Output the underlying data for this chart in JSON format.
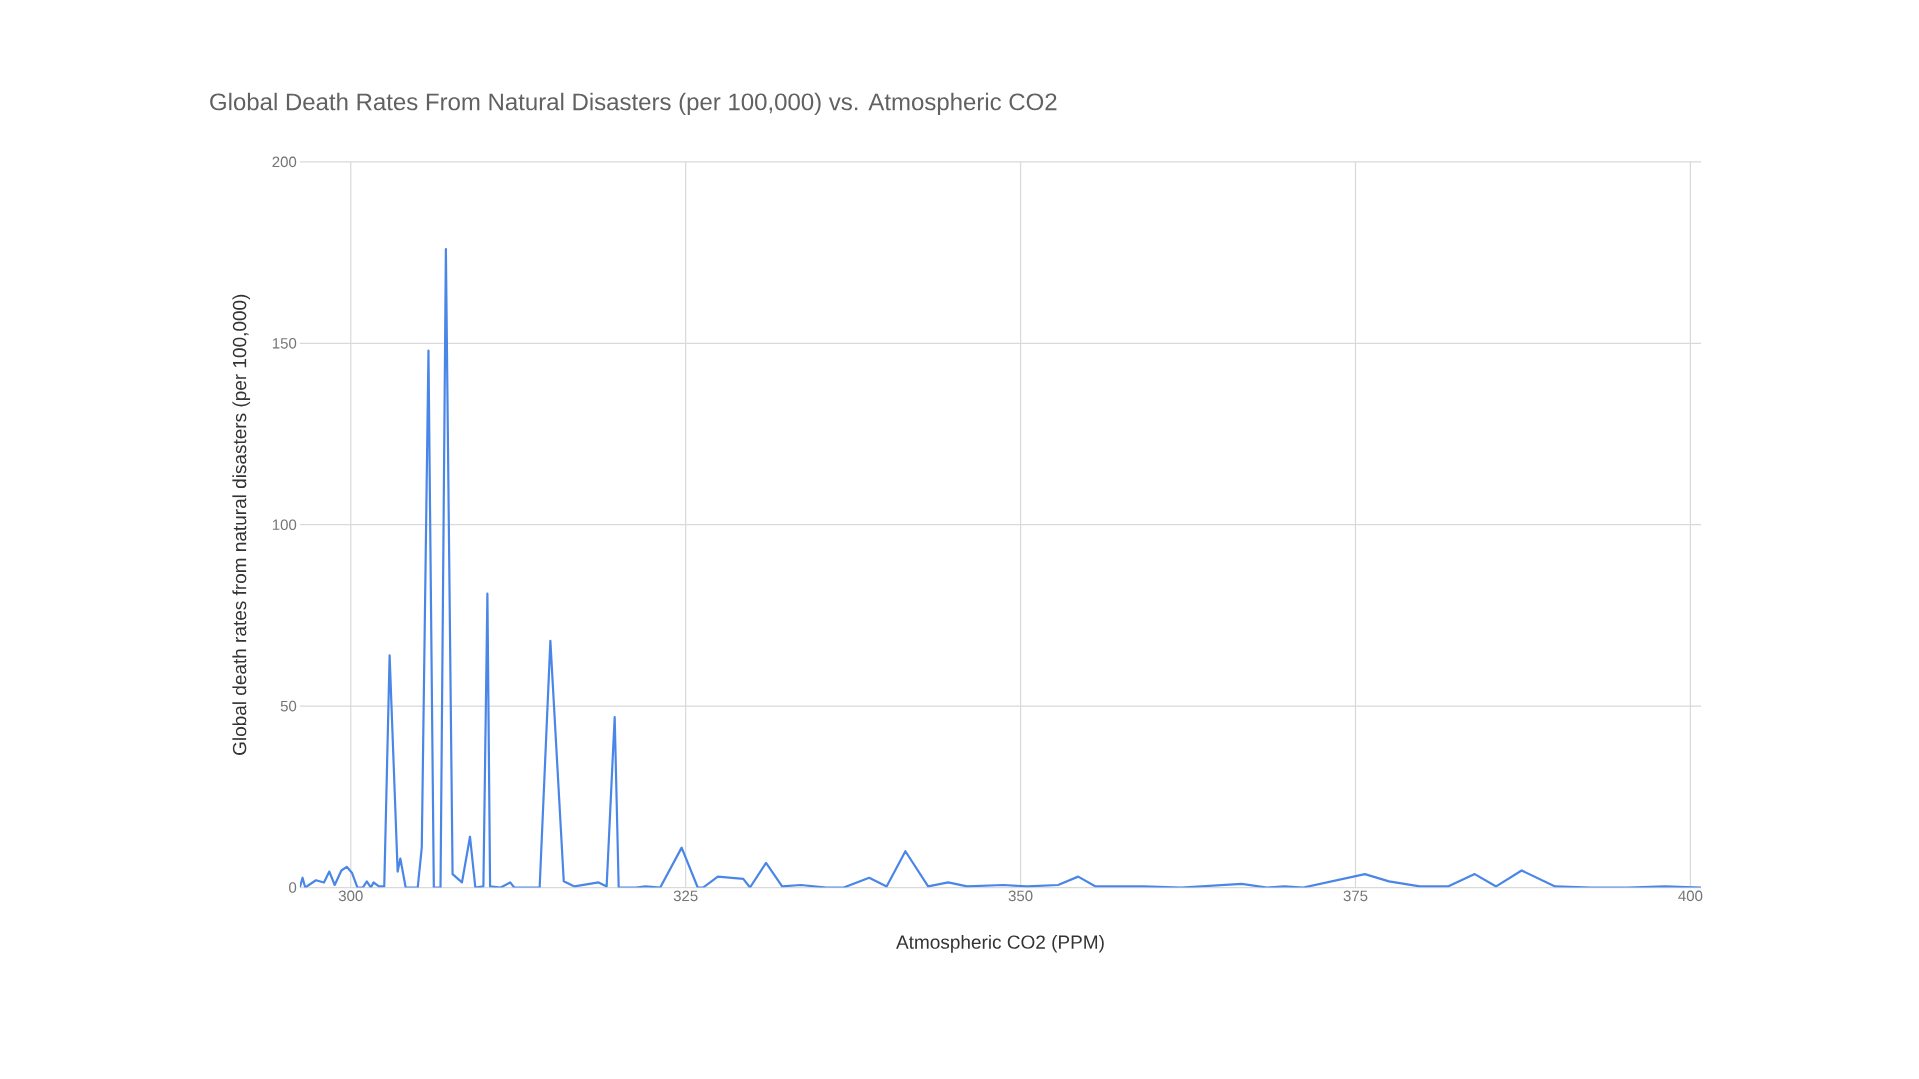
{
  "chart_data": {
    "type": "line",
    "title": "Global Death Rates From Natural Disasters (per 100,000) vs. Atmospheric CO2",
    "xlabel": "Atmospheric CO2 (PPM)",
    "ylabel": "Global death rates from natural disasters (per 100,000)",
    "xlim": [
      296.2,
      400.8
    ],
    "ylim": [
      0,
      200
    ],
    "xticks": [
      300,
      325,
      350,
      375,
      400
    ],
    "yticks": [
      0,
      50,
      100,
      150,
      200
    ],
    "grid": true,
    "series": [
      {
        "color": "#4a86e8",
        "x": [
          296.2,
          296.4,
          296.6,
          297.4,
          298,
          298.4,
          298.8,
          299.3,
          299.7,
          300.1,
          300.5,
          300.9,
          301.2,
          301.5,
          301.7,
          302.1,
          302.5,
          302.9,
          303.5,
          303.7,
          304.1,
          305,
          305.3,
          305.8,
          306.2,
          306.7,
          307.1,
          307.6,
          308.3,
          308.9,
          309.3,
          309.9,
          310.2,
          310.4,
          311.2,
          311.9,
          312.2,
          314.1,
          314.9,
          315.9,
          316.7,
          318.5,
          319.1,
          319.7,
          320,
          321.3,
          322,
          323.1,
          324.7,
          325.9,
          326.3,
          327.4,
          329.3,
          329.8,
          331,
          332.2,
          333.6,
          335.5,
          336.8,
          338.7,
          340,
          341.4,
          343.1,
          344.6,
          346,
          348.7,
          350.5,
          352.8,
          354.3,
          355.6,
          359.2,
          362,
          366.5,
          368.4,
          369.7,
          371.1,
          375.7,
          377.5,
          379.8,
          381.9,
          383.9,
          385.5,
          387.4,
          389.9,
          392.6,
          395.3,
          398.1,
          400.8
        ],
        "values": [
          0,
          2.7,
          0,
          2,
          1.4,
          4.4,
          0.7,
          4.7,
          5.7,
          4,
          0,
          0,
          1.7,
          0,
          1.4,
          0.3,
          0.3,
          64,
          4.4,
          8,
          0,
          0,
          11,
          148,
          0,
          0,
          176,
          3.7,
          1.4,
          14,
          0,
          0.3,
          81,
          0.3,
          0,
          1.4,
          0,
          0,
          68,
          1.7,
          0.3,
          1.4,
          0.3,
          47,
          0,
          0,
          0.3,
          0,
          11,
          0,
          0,
          3,
          2.4,
          0,
          6.8,
          0.3,
          0.7,
          0,
          0,
          2.7,
          0.3,
          10,
          0.3,
          1.4,
          0.3,
          0.7,
          0.3,
          0.7,
          3,
          0.3,
          0.3,
          0,
          1,
          0,
          0.3,
          0,
          3.7,
          1.7,
          0.3,
          0.3,
          3.7,
          0.3,
          4.7,
          0.3,
          0,
          0,
          0.3,
          0
        ]
      }
    ]
  }
}
